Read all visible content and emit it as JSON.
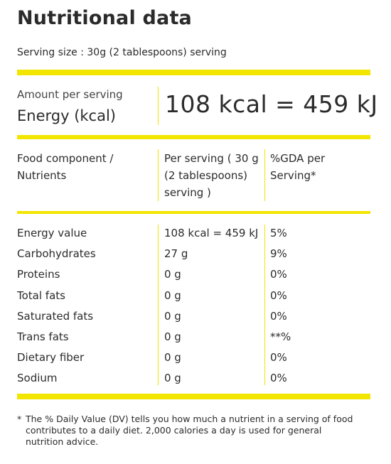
{
  "title": "Nutritional data",
  "serving": "Serving size : 30g (2 tablespoons) serving",
  "energy": {
    "amount_label": "Amount per serving",
    "label": "Energy (kcal)",
    "value": "108 kcal = 459 kJ"
  },
  "table": {
    "headers": {
      "component_line1": "Food component /",
      "component_line2": "Nutrients",
      "per_serving_line1": "Per serving ( 30 g",
      "per_serving_line2": "(2 tablespoons)",
      "per_serving_line3": "serving )",
      "gda_line1": "%GDA per",
      "gda_line2": "Serving*"
    },
    "rows": [
      {
        "name": "Energy value",
        "per_serving": "108 kcal = 459 kJ",
        "gda": "5%"
      },
      {
        "name": "Carbohydrates",
        "per_serving": "27 g",
        "gda": "9%"
      },
      {
        "name": "Proteins",
        "per_serving": "0 g",
        "gda": "0%"
      },
      {
        "name": "Total fats",
        "per_serving": "0 g",
        "gda": "0%"
      },
      {
        "name": "Saturated fats",
        "per_serving": "0 g",
        "gda": "0%"
      },
      {
        "name": "Trans fats",
        "per_serving": "0 g",
        "gda": "**%"
      },
      {
        "name": "Dietary fiber",
        "per_serving": "0 g",
        "gda": "0%"
      },
      {
        "name": "Sodium",
        "per_serving": "0 g",
        "gda": "0%"
      }
    ]
  },
  "footnote": {
    "marker": "*",
    "text": "The % Daily Value (DV) tells you how much a nutrient in a serving of food contributes to a daily diet. 2,000 calories a day is used for general nutrition advice."
  },
  "colors": {
    "accent": "#f2e600",
    "text": "#2b2b2b"
  }
}
